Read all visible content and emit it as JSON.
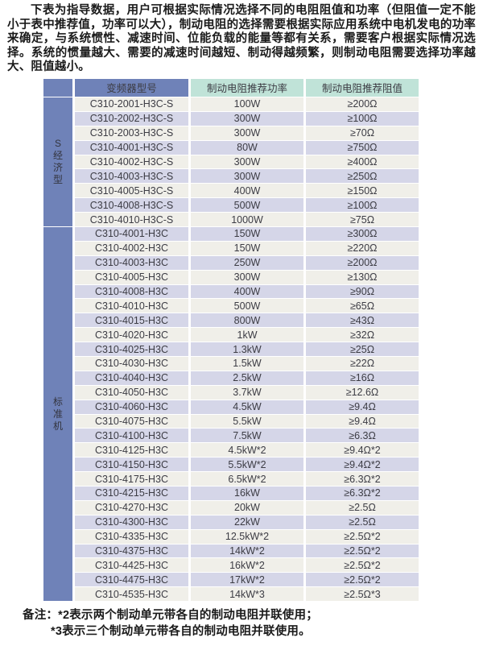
{
  "intro_paragraph": "下表为指导数据，用户可根据实际情况选择不同的电阻阻值和功率（但阻值一定不能小于表中推荐值，功率可以大），制动电阻的选择需要根据实际应用系统中电机发电的功率来确定，与系统惯性、减速时间、位能负载的能量等都有关系，需要客户根据实际情况选择。系统的惯量越大、需要的减速时间越短、制动得越频繁，则制动电阻需要选择功率越大、阻值越小。",
  "table": {
    "headers": [
      "变频器型号",
      "制动电阻推荐功率",
      "制动电阻推荐阻值"
    ],
    "groups": [
      {
        "label": "S经济型",
        "rows": [
          [
            "C310-2001-H3C-S",
            "100W",
            "≥200Ω"
          ],
          [
            "C310-2002-H3C-S",
            "300W",
            "≥100Ω"
          ],
          [
            "C310-2003-H3C-S",
            "300W",
            "≥70Ω"
          ],
          [
            "C310-4001-H3C-S",
            "80W",
            "≥750Ω"
          ],
          [
            "C310-4002-H3C-S",
            "300W",
            "≥400Ω"
          ],
          [
            "C310-4003-H3C-S",
            "300W",
            "≥250Ω"
          ],
          [
            "C310-4005-H3C-S",
            "400W",
            "≥150Ω"
          ],
          [
            "C310-4008-H3C-S",
            "500W",
            "≥100Ω"
          ],
          [
            "C310-4010-H3C-S",
            "1000W",
            "≥75Ω"
          ]
        ]
      },
      {
        "label": "标准机",
        "rows": [
          [
            "C310-4001-H3C",
            "150W",
            "≥300Ω"
          ],
          [
            "C310-4002-H3C",
            "150W",
            "≥220Ω"
          ],
          [
            "C310-4003-H3C",
            "250W",
            "≥200Ω"
          ],
          [
            "C310-4005-H3C",
            "300W",
            "≥130Ω"
          ],
          [
            "C310-4008-H3C",
            "400W",
            "≥90Ω"
          ],
          [
            "C310-4010-H3C",
            "500W",
            "≥65Ω"
          ],
          [
            "C310-4015-H3C",
            "800W",
            "≥43Ω"
          ],
          [
            "C310-4020-H3C",
            "1kW",
            "≥32Ω"
          ],
          [
            "C310-4025-H3C",
            "1.3kW",
            "≥25Ω"
          ],
          [
            "C310-4030-H3C",
            "1.5kW",
            "≥22Ω"
          ],
          [
            "C310-4040-H3C",
            "2.5kW",
            "≥16Ω"
          ],
          [
            "C310-4050-H3C",
            "3.7kW",
            "≥12.6Ω"
          ],
          [
            "C310-4060-H3C",
            "4.5kW",
            "≥9.4Ω"
          ],
          [
            "C310-4075-H3C",
            "5.5kW",
            "≥9.4Ω"
          ],
          [
            "C310-4100-H3C",
            "7.5kW",
            "≥6.3Ω"
          ],
          [
            "C310-4125-H3C",
            "4.5kW*2",
            "≥9.4Ω*2"
          ],
          [
            "C310-4150-H3C",
            "5.5kW*2",
            "≥9.4Ω*2"
          ],
          [
            "C310-4175-H3C",
            "6.5kW*2",
            "≥6.3Ω*2"
          ],
          [
            "C310-4215-H3C",
            "16kW",
            "≥6.3Ω*2"
          ],
          [
            "C310-4270-H3C",
            "20kW",
            "≥2.5Ω"
          ],
          [
            "C310-4300-H3C",
            "22kW",
            "≥2.5Ω"
          ],
          [
            "C310-4335-H3C",
            "12.5kW*2",
            "≥2.5Ω*2"
          ],
          [
            "C310-4375-H3C",
            "14kW*2",
            "≥2.5Ω*2"
          ],
          [
            "C310-4425-H3C",
            "16kW*2",
            "≥2.5Ω*2"
          ],
          [
            "C310-4475-H3C",
            "17kW*2",
            "≥2.5Ω*2"
          ],
          [
            "C310-4535-H3C",
            "14kW*3",
            "≥2.5Ω*3"
          ]
        ]
      }
    ]
  },
  "notes": {
    "line1": "备注：*2表示两个制动单元带各自的制动电阻并联使用；",
    "line2": "*3表示三个制动单元带各自的制动电阻并联使用。"
  },
  "colors": {
    "blue": "#6f82b8",
    "teal": "#c0e3d8",
    "row-light": "#f0efe9",
    "row-lav": "#d5d6e8",
    "ink": "#1a1a1a",
    "cell-ink": "#3c3c44"
  }
}
